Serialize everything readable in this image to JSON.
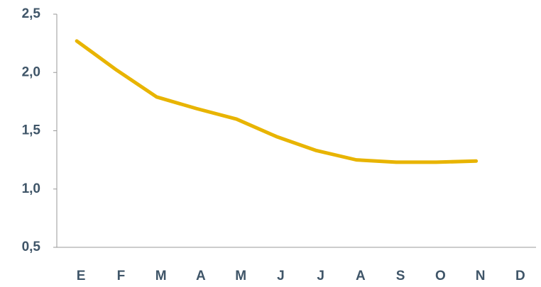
{
  "chart_data": {
    "type": "line",
    "categories": [
      "E",
      "F",
      "M",
      "A",
      "M",
      "J",
      "J",
      "A",
      "S",
      "O",
      "N",
      "D"
    ],
    "series": [
      {
        "color": "#e8b400",
        "values": [
          2.27,
          2.02,
          1.79,
          1.69,
          1.6,
          1.45,
          1.33,
          1.25,
          1.23,
          1.23,
          1.24,
          null
        ]
      }
    ],
    "ylim": [
      0.5,
      2.5
    ],
    "yticks": [
      {
        "value": 0.5,
        "label": "0,5"
      },
      {
        "value": 1.0,
        "label": "1,0"
      },
      {
        "value": 1.5,
        "label": "1,5"
      },
      {
        "value": 2.0,
        "label": "2,0"
      },
      {
        "value": 2.5,
        "label": "2,5"
      }
    ]
  }
}
